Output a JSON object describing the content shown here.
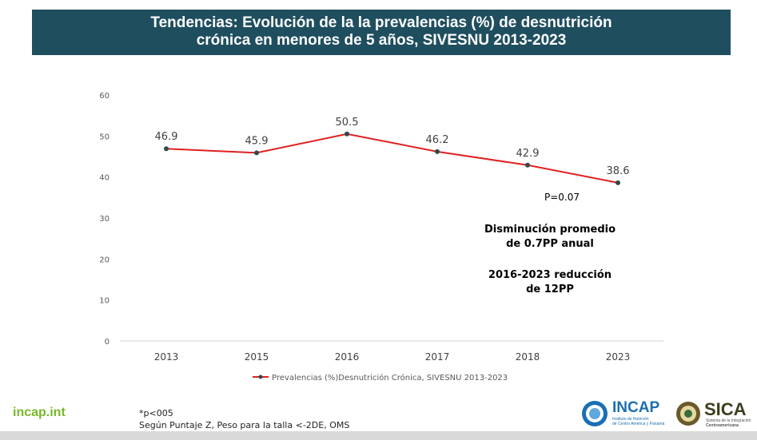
{
  "header": {
    "title_line1": "Tendencias:  Evolución de la la prevalencias (%) de desnutrición",
    "title_line2": "crónica en menores de 5 años, SIVESNU 2013-2023"
  },
  "chart_data": {
    "type": "line",
    "categories": [
      "2013",
      "2015",
      "2016",
      "2017",
      "2018",
      "2023"
    ],
    "series": [
      {
        "name": "Prevalencias (%)Desnutrición Crónica, SIVESNU 2013-2023",
        "values": [
          46.9,
          45.9,
          50.5,
          46.2,
          42.9,
          38.6
        ],
        "labels": [
          "46.9",
          "45.9",
          "50.5",
          "46.2",
          "42.9",
          "38.6"
        ],
        "color": "#e02020"
      }
    ],
    "yticks": [
      "0",
      "10",
      "20",
      "30",
      "40",
      "50",
      "60"
    ],
    "ylim": [
      0,
      60
    ],
    "grid": false,
    "legend": "bottom"
  },
  "annotations": {
    "pvalue": "P=0.07",
    "note1_line1": "Disminución promedio",
    "note1_line2": "de 0.7PP anual",
    "note2_line1": "2016-2023 reducción",
    "note2_line2": "de 12PP"
  },
  "footer": {
    "site": "incap.int",
    "note_line1": "*p<005",
    "note_line2": "Según Puntaje Z, Peso para la talla <-2DE, OMS",
    "incap_logo_text": "INCAP",
    "incap_logo_sub1": "Instituto de Nutrición",
    "incap_logo_sub2": "de Centro América y Panamá",
    "sica_logo_text": "SICA",
    "sica_logo_sub1": "Sistema de la Integración",
    "sica_logo_sub2": "Centroamericana"
  },
  "colors": {
    "banner": "#1f4e5f",
    "line": "#e02020",
    "marker": "#2e4a4a",
    "site_green": "#76b82a",
    "incap_blue": "#1a6fb5"
  }
}
